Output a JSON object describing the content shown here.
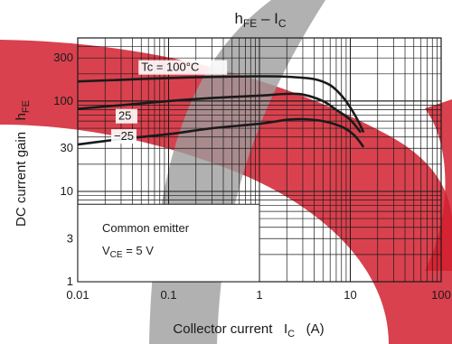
{
  "chart_data": {
    "type": "line",
    "title": {
      "main": "h",
      "main_sub": "FE",
      "sep": " – ",
      "rest": "I",
      "rest_sub": "C"
    },
    "xlabel": {
      "main": "Collector current   I",
      "sub": "C",
      "unit": "   (A)"
    },
    "ylabel": {
      "main": "DC current gain   h",
      "sub": "FE"
    },
    "x_scale": "log",
    "y_scale": "log",
    "xlim": [
      0.01,
      100
    ],
    "ylim": [
      1,
      500
    ],
    "x_ticks": [
      {
        "value": 0.01,
        "label": "0.01"
      },
      {
        "value": 0.1,
        "label": "0.1"
      },
      {
        "value": 1,
        "label": "1"
      },
      {
        "value": 10,
        "label": "10"
      },
      {
        "value": 100,
        "label": "100"
      }
    ],
    "y_ticks": [
      {
        "value": 1,
        "label": "1"
      },
      {
        "value": 3,
        "label": "3"
      },
      {
        "value": 10,
        "label": "10"
      },
      {
        "value": 30,
        "label": "30"
      },
      {
        "value": 100,
        "label": "100"
      },
      {
        "value": 300,
        "label": "300"
      }
    ],
    "grid": true,
    "series": [
      {
        "name": "Tc = 100°C",
        "points": [
          [
            0.01,
            165
          ],
          [
            0.03,
            172
          ],
          [
            0.1,
            180
          ],
          [
            0.3,
            185
          ],
          [
            1,
            188
          ],
          [
            2,
            186
          ],
          [
            4,
            175
          ],
          [
            6,
            150
          ],
          [
            8,
            115
          ],
          [
            10,
            85
          ],
          [
            12,
            62
          ],
          [
            14,
            45
          ]
        ]
      },
      {
        "name": "25",
        "points": [
          [
            0.01,
            82
          ],
          [
            0.03,
            90
          ],
          [
            0.1,
            100
          ],
          [
            0.3,
            108
          ],
          [
            1,
            115
          ],
          [
            2,
            120
          ],
          [
            3,
            118
          ],
          [
            5,
            100
          ],
          [
            7,
            80
          ],
          [
            10,
            62
          ],
          [
            13,
            45
          ]
        ]
      },
      {
        "name": "−25",
        "points": [
          [
            0.01,
            33
          ],
          [
            0.03,
            38
          ],
          [
            0.1,
            43
          ],
          [
            0.3,
            50
          ],
          [
            1,
            56
          ],
          [
            2,
            62
          ],
          [
            3,
            63
          ],
          [
            5,
            60
          ],
          [
            8,
            52
          ],
          [
            11,
            42
          ],
          [
            14,
            31
          ]
        ]
      }
    ],
    "annotations": {
      "conditions_line1": "Common emitter",
      "conditions_line2": {
        "main": "V",
        "sub": "CE",
        "rest": " = 5 V"
      }
    },
    "colors": {
      "curve": "#1a1a1a",
      "grid": "#1a1a1a",
      "watermark_red": "#d2202f",
      "watermark_gray": "#9e9e9e"
    }
  }
}
